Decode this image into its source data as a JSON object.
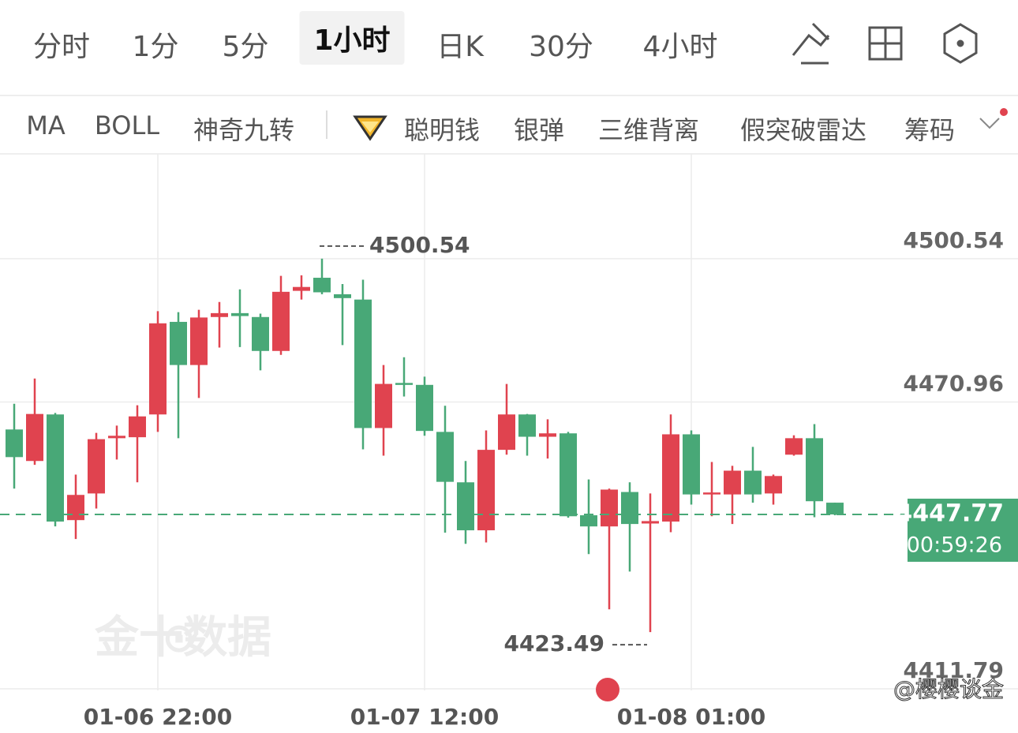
{
  "tabs": [
    "分时",
    "1分",
    "5分",
    "1小时",
    "日K",
    "30分",
    "4小时"
  ],
  "indicators": [
    "MA",
    "BOLL",
    "神奇九转",
    "聪明钱",
    "银弹",
    "三维背离",
    "假突破雷达",
    "筹码"
  ],
  "watermark": "金十数据",
  "user": "@樱樱谈金",
  "chart_data": {
    "type": "candlestick",
    "categories": [
      null,
      null,
      null,
      null,
      null,
      null,
      null,
      "01-06 22:00",
      null,
      null,
      null,
      null,
      null,
      null,
      null,
      null,
      null,
      null,
      null,
      null,
      "01-07 12:00",
      null,
      null,
      null,
      null,
      null,
      null,
      null,
      null,
      null,
      null,
      null,
      null,
      "01-08 01:00",
      null,
      null,
      null,
      null,
      null,
      null,
      null
    ],
    "open": [
      4465.3,
      4458.8,
      4468.4,
      4446.6,
      4452.1,
      4463.5,
      4463.7,
      4468.4,
      4487.5,
      4478.6,
      4488.5,
      4489.3,
      4488.5,
      4481.5,
      4493.9,
      4496.6,
      4493.2,
      4492.1,
      4465.6,
      4474.9,
      4474.5,
      4464.8,
      4454.4,
      4444.5,
      4461.1,
      4468.4,
      4463.8,
      4464.5,
      4447.6,
      4445.3,
      4452.4,
      4445.9,
      4446.3,
      4464.3,
      4451.9,
      4451.9,
      4456.8,
      4452.1,
      4460.1,
      4463.5,
      4450.2
    ],
    "high": [
      4470.6,
      4475.8,
      4468.7,
      4456.0,
      4464.6,
      4466.1,
      4470.3,
      4489.7,
      4489.5,
      4490.0,
      4491.6,
      4494.2,
      4489.2,
      4497.0,
      4497.1,
      4500.54,
      4495.3,
      4496.2,
      4478.6,
      4480.2,
      4476.2,
      4470.2,
      4458.8,
      4465.1,
      4474.7,
      4468.5,
      4467.4,
      4464.8,
      4455.0,
      4453.1,
      4454.4,
      4452.1,
      4468.4,
      4465.1,
      4458.6,
      4457.8,
      4461.7,
      4456.0,
      4464.1,
      4466.4,
      4450.2
    ],
    "low": [
      4453.1,
      4458.0,
      4445.3,
      4442.7,
      4449.0,
      4459.1,
      4454.4,
      4464.8,
      4463.5,
      4471.8,
      4482.2,
      4482.3,
      4477.5,
      4480.7,
      4492.1,
      4493.2,
      4482.7,
      4461.2,
      4459.9,
      4472.1,
      4464.0,
      4444.0,
      4441.7,
      4442.0,
      4460.1,
      4459.9,
      4459.3,
      4447.1,
      4439.6,
      4428.2,
      4436.0,
      4423.49,
      4444.1,
      4449.8,
      4447.4,
      4445.8,
      4450.2,
      4449.8,
      4459.9,
      4447.2,
      4447.6
    ],
    "close": [
      4459.6,
      4468.5,
      4446.3,
      4451.8,
      4463.3,
      4464.0,
      4468.0,
      4487.2,
      4478.6,
      4488.4,
      4489.3,
      4488.7,
      4481.5,
      4493.7,
      4494.7,
      4493.6,
      4492.4,
      4465.6,
      4474.7,
      4474.7,
      4465.0,
      4454.5,
      4444.5,
      4461.1,
      4468.4,
      4463.8,
      4464.5,
      4447.4,
      4445.3,
      4452.9,
      4445.8,
      4446.4,
      4464.3,
      4451.9,
      4452.3,
      4456.8,
      4451.9,
      4455.7,
      4463.5,
      4450.5,
      4447.77
    ],
    "up_color": "#e0434f",
    "down_color": "#48a877",
    "ylim": [
      4409.03,
      4522.16
    ],
    "yticks": [
      4500.54,
      4470.96,
      4411.79
    ],
    "grid": true,
    "countdown": "00:59:26"
  }
}
